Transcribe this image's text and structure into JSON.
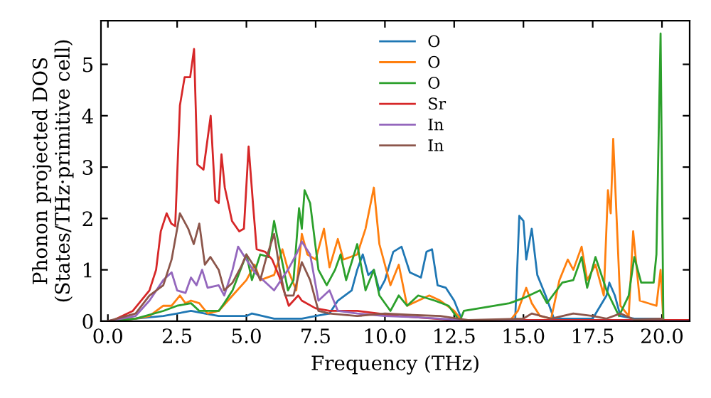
{
  "chart_data": {
    "type": "line",
    "xlabel": "Frequency (THz)",
    "ylabel": "Phonon projected DOS\n(States/THz·primitive cell)",
    "xlim": [
      -0.25,
      21
    ],
    "ylim": [
      0,
      5.85
    ],
    "xticks": [
      {
        "value": 0,
        "label": "0.0"
      },
      {
        "value": 2.5,
        "label": "2.5"
      },
      {
        "value": 5,
        "label": "5.0"
      },
      {
        "value": 7.5,
        "label": "7.5"
      },
      {
        "value": 10,
        "label": "10.0"
      },
      {
        "value": 12.5,
        "label": "12.5"
      },
      {
        "value": 15,
        "label": "15.0"
      },
      {
        "value": 17.5,
        "label": "17.5"
      },
      {
        "value": 20,
        "label": "20.0"
      }
    ],
    "yticks": [
      0,
      1,
      2,
      3,
      4,
      5
    ],
    "grid": false,
    "legend": "top",
    "series": [
      {
        "name": "O",
        "color": "#1f77b4",
        "x": [
          0,
          2,
          3,
          3.5,
          4,
          5,
          5.2,
          6,
          7,
          7.5,
          8,
          8.3,
          8.8,
          9.0,
          9.2,
          9.4,
          9.6,
          9.8,
          10.0,
          10.3,
          10.6,
          10.9,
          11.3,
          11.5,
          11.7,
          11.9,
          12.2,
          12.5,
          12.8,
          14.7,
          14.85,
          15.0,
          15.1,
          15.3,
          15.5,
          15.8,
          16.1,
          17.5,
          18.0,
          18.1,
          18.3,
          18.5,
          19,
          20,
          20.1
        ],
        "values": [
          0,
          0.1,
          0.2,
          0.15,
          0.1,
          0.1,
          0.15,
          0.05,
          0.05,
          0.1,
          0.15,
          0.4,
          0.6,
          1.0,
          1.3,
          0.9,
          1.0,
          0.6,
          0.8,
          1.35,
          1.45,
          0.95,
          0.85,
          1.35,
          1.4,
          0.7,
          0.65,
          0.4,
          0,
          0,
          2.05,
          1.95,
          1.2,
          1.8,
          0.9,
          0.5,
          0.05,
          0.05,
          0.5,
          0.75,
          0.5,
          0.1,
          0.05,
          0.05,
          0
        ]
      },
      {
        "name": "O",
        "color": "#ff7f0e",
        "x": [
          0,
          1,
          1.5,
          2,
          2.3,
          2.6,
          2.8,
          3.0,
          3.3,
          3.6,
          4,
          4.5,
          5.0,
          5.3,
          5.5,
          6,
          6.3,
          6.5,
          6.8,
          7.0,
          7.2,
          7.5,
          7.8,
          8,
          8.3,
          8.5,
          9,
          9.3,
          9.6,
          9.8,
          10.2,
          10.5,
          10.8,
          11.2,
          11.6,
          12,
          12.5,
          12.8,
          14.5,
          14.8,
          15.1,
          15.3,
          15.6,
          16,
          16.3,
          16.6,
          16.8,
          17.1,
          17.3,
          17.6,
          17.9,
          18.05,
          18.15,
          18.24,
          18.5,
          18.8,
          18.96,
          19.2,
          19.8,
          19.95,
          20.05
        ],
        "values": [
          0,
          0.05,
          0.1,
          0.3,
          0.3,
          0.5,
          0.35,
          0.4,
          0.35,
          0.15,
          0.2,
          0.5,
          0.8,
          1.1,
          0.8,
          0.9,
          1.4,
          1.0,
          0.6,
          1.7,
          1.3,
          1.2,
          1.8,
          1.05,
          1.6,
          1.2,
          1.3,
          1.8,
          2.6,
          1.5,
          0.7,
          1.1,
          0.3,
          0.4,
          0.5,
          0.4,
          0.2,
          0,
          0,
          0.2,
          0.65,
          0.35,
          0.1,
          0.05,
          0.8,
          1.2,
          1.0,
          1.45,
          0.8,
          1.1,
          0.5,
          2.55,
          2.1,
          3.55,
          0.3,
          0.1,
          1.75,
          0.4,
          0.3,
          1.0,
          0
        ]
      },
      {
        "name": "O",
        "color": "#2ca02c",
        "x": [
          0,
          1,
          2,
          2.5,
          3,
          3.3,
          4,
          4.2,
          4.5,
          5.0,
          5.2,
          5.5,
          5.8,
          6.0,
          6.2,
          6.5,
          6.7,
          6.9,
          7.0,
          7.1,
          7.3,
          7.6,
          7.9,
          8.2,
          8.4,
          8.6,
          9.0,
          9.3,
          9.6,
          9.8,
          10.2,
          10.5,
          10.8,
          11.2,
          11.8,
          12.3,
          12.7,
          12.85,
          14.5,
          15.0,
          15.6,
          15.85,
          16.4,
          16.8,
          17.1,
          17.3,
          17.6,
          18.0,
          18.45,
          18.8,
          19.0,
          19.25,
          19.7,
          19.8,
          19.95,
          20.05
        ],
        "values": [
          0,
          0.05,
          0.2,
          0.3,
          0.35,
          0.2,
          0.2,
          0.35,
          0.6,
          1.3,
          0.8,
          1.3,
          1.25,
          1.95,
          1.4,
          0.6,
          0.8,
          2.2,
          1.8,
          2.55,
          2.3,
          1.0,
          0.7,
          1.0,
          1.3,
          0.8,
          1.5,
          0.6,
          1.0,
          0.5,
          0.2,
          0.5,
          0.3,
          0.5,
          0.4,
          0.3,
          0,
          0.2,
          0.35,
          0.45,
          0.6,
          0.35,
          0.75,
          0.8,
          1.25,
          0.65,
          1.25,
          0.6,
          0.1,
          0.5,
          1.25,
          0.75,
          0.75,
          1.3,
          5.6,
          0
        ]
      },
      {
        "name": "Sr",
        "color": "#d62728",
        "x": [
          0,
          0.2,
          0.9,
          1.5,
          1.74,
          1.91,
          2.12,
          2.29,
          2.43,
          2.6,
          2.77,
          2.97,
          3.11,
          3.23,
          3.45,
          3.71,
          3.88,
          4.0,
          4.1,
          4.22,
          4.48,
          4.74,
          4.91,
          5.08,
          5.25,
          5.37,
          5.68,
          5.93,
          6.2,
          6.53,
          6.87,
          7.0,
          7.5,
          8,
          9,
          10.5,
          12.5,
          13,
          21
        ],
        "values": [
          0,
          0.02,
          0.2,
          0.6,
          1.0,
          1.75,
          2.1,
          1.9,
          1.85,
          4.2,
          4.75,
          4.75,
          5.3,
          3.05,
          2.95,
          4.0,
          2.35,
          2.3,
          3.25,
          2.6,
          1.95,
          1.75,
          1.8,
          3.4,
          2.2,
          1.4,
          1.35,
          1.2,
          0.85,
          0.3,
          0.5,
          0.4,
          0.25,
          0.2,
          0.2,
          0.1,
          0.02,
          0.02,
          0.02
        ]
      },
      {
        "name": "In",
        "color": "#9467bd",
        "x": [
          0,
          1,
          1.5,
          2,
          2.3,
          2.5,
          2.8,
          3.0,
          3.2,
          3.4,
          3.6,
          4.0,
          4.2,
          4.5,
          4.7,
          5.0,
          5.3,
          5.5,
          5.8,
          6.0,
          6.5,
          6.8,
          7.0,
          7.3,
          7.6,
          8,
          8.3,
          9,
          10,
          11,
          12,
          13,
          21
        ],
        "values": [
          0,
          0.1,
          0.4,
          0.8,
          0.95,
          0.6,
          0.55,
          0.85,
          0.7,
          1.0,
          0.65,
          0.7,
          0.5,
          1.0,
          1.45,
          1.2,
          0.95,
          0.85,
          0.7,
          0.6,
          1.0,
          1.3,
          1.55,
          1.3,
          0.4,
          0.6,
          0.2,
          0.15,
          0.1,
          0.08,
          0.05,
          0.01,
          0
        ]
      },
      {
        "name": "In",
        "color": "#8c564b",
        "x": [
          0,
          1,
          1.5,
          2,
          2.3,
          2.6,
          2.9,
          3.1,
          3.3,
          3.5,
          3.7,
          4.0,
          4.2,
          4.5,
          4.8,
          5.0,
          5.3,
          5.5,
          5.7,
          6.0,
          6.2,
          6.4,
          6.7,
          7.0,
          7.3,
          7.6,
          8.0,
          9,
          10,
          11,
          12,
          13,
          15,
          15.3,
          16,
          16.8,
          17.5,
          18,
          18.5,
          19,
          20,
          20.1
        ],
        "values": [
          0,
          0.15,
          0.5,
          0.7,
          1.2,
          2.1,
          1.8,
          1.5,
          1.9,
          1.1,
          1.25,
          1.0,
          0.6,
          0.75,
          1.05,
          1.3,
          1.05,
          0.8,
          1.2,
          1.7,
          1.0,
          0.5,
          0.5,
          1.15,
          0.8,
          0.2,
          0.15,
          0.1,
          0.15,
          0.12,
          0.1,
          0.02,
          0.05,
          0.15,
          0.05,
          0.15,
          0.1,
          0.05,
          0.15,
          0.03,
          0.05,
          0
        ]
      }
    ]
  }
}
